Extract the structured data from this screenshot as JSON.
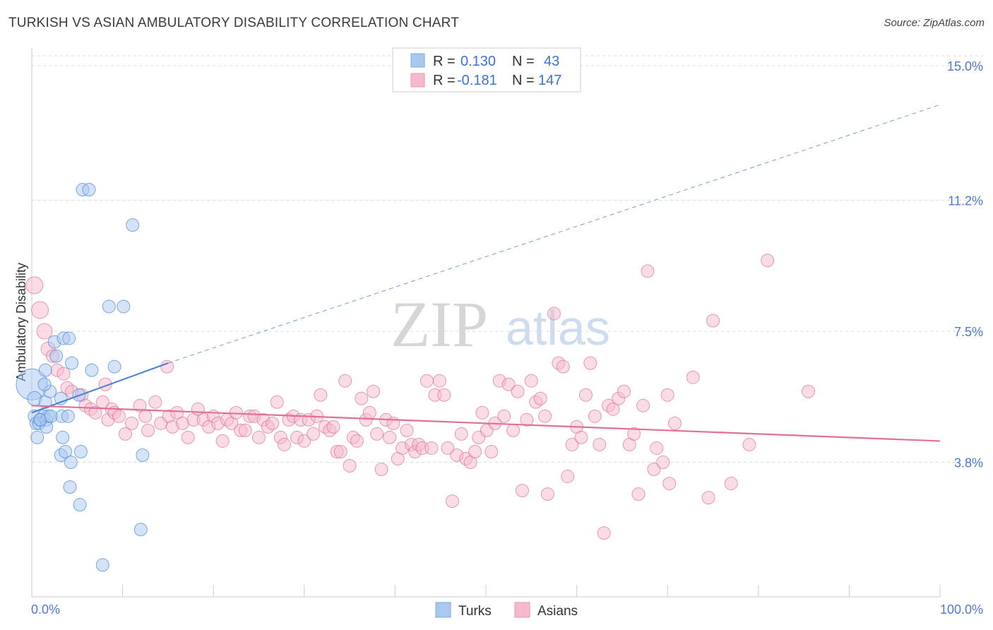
{
  "title": "TURKISH VS ASIAN AMBULATORY DISABILITY CORRELATION CHART",
  "source": "Source: ZipAtlas.com",
  "watermark": {
    "zip": "ZIP",
    "atlas": "atlas"
  },
  "legend_top": {
    "rows": [
      {
        "r_label": "R =",
        "r_value": "0.130",
        "n_label": "N =",
        "n_value": "43",
        "color": "#a9c8f0"
      },
      {
        "r_label": "R =",
        "r_value": "-0.181",
        "n_label": "N =",
        "n_value": "147",
        "color": "#f6b9cc"
      }
    ]
  },
  "legend_bottom": {
    "items": [
      "Turks",
      "Asians"
    ]
  },
  "chart_data": {
    "type": "scatter",
    "title": "TURKISH VS ASIAN AMBULATORY DISABILITY CORRELATION CHART",
    "xlabel": "",
    "ylabel": "Ambulatory Disability",
    "xlim": [
      0,
      100
    ],
    "ylim": [
      0,
      15.5
    ],
    "x_ticks": [
      "0.0%",
      "100.0%"
    ],
    "y_ticks": [
      {
        "value": 3.8,
        "label": "3.8%"
      },
      {
        "value": 7.5,
        "label": "7.5%"
      },
      {
        "value": 11.2,
        "label": "11.2%"
      },
      {
        "value": 15.0,
        "label": "15.0%"
      }
    ],
    "series": [
      {
        "name": "Turks",
        "color": "#4a86d4",
        "fill": "#a9c8f0",
        "trend": {
          "x": [
            0,
            15
          ],
          "y": [
            5.2,
            6.6
          ],
          "dashed_to": [
            100,
            13.9
          ]
        },
        "points": [
          [
            0,
            6.0,
            22
          ],
          [
            0.3,
            5.6,
            10
          ],
          [
            0.3,
            5.1,
            9
          ],
          [
            0.5,
            4.9,
            9
          ],
          [
            0.6,
            4.5,
            9
          ],
          [
            0.8,
            4.9,
            9
          ],
          [
            1.0,
            5.0,
            9
          ],
          [
            1.3,
            5.1,
            9
          ],
          [
            1.5,
            5.5,
            9
          ],
          [
            1.6,
            5.0,
            9
          ],
          [
            1.6,
            4.8,
            9
          ],
          [
            1.8,
            5.1,
            9
          ],
          [
            2.0,
            5.8,
            9
          ],
          [
            1.5,
            6.4,
            9
          ],
          [
            1.4,
            6.0,
            9
          ],
          [
            2.5,
            7.2,
            9
          ],
          [
            2.7,
            6.8,
            9
          ],
          [
            3.2,
            5.6,
            9
          ],
          [
            3.3,
            5.1,
            9
          ],
          [
            3.4,
            4.5,
            9
          ],
          [
            3.2,
            4.0,
            9
          ],
          [
            3.7,
            4.1,
            9
          ],
          [
            3.5,
            7.3,
            9
          ],
          [
            4.1,
            7.3,
            9
          ],
          [
            4.0,
            5.1,
            9
          ],
          [
            4.3,
            3.8,
            9
          ],
          [
            4.4,
            6.6,
            9
          ],
          [
            4.2,
            3.1,
            9
          ],
          [
            5.2,
            5.7,
            9
          ],
          [
            5.4,
            4.1,
            9
          ],
          [
            5.3,
            2.6,
            9
          ],
          [
            5.6,
            11.5,
            9
          ],
          [
            6.3,
            11.5,
            9
          ],
          [
            6.6,
            6.4,
            9
          ],
          [
            7.8,
            0.9,
            9
          ],
          [
            8.5,
            8.2,
            9
          ],
          [
            9.1,
            6.5,
            9
          ],
          [
            10.1,
            8.2,
            9
          ],
          [
            11.1,
            10.5,
            9
          ],
          [
            12.0,
            1.9,
            9
          ],
          [
            12.2,
            4.0,
            9
          ],
          [
            0.9,
            5.0,
            9
          ],
          [
            2.1,
            5.1,
            9
          ]
        ]
      },
      {
        "name": "Asians",
        "color": "#e0709a",
        "fill": "#f6b9cc",
        "trend": {
          "x": [
            0,
            100
          ],
          "y": [
            5.4,
            4.4
          ]
        },
        "points": [
          [
            0.3,
            8.8,
            12
          ],
          [
            0.9,
            8.1,
            12
          ],
          [
            1.4,
            7.5,
            11
          ],
          [
            1.8,
            7.0,
            10
          ],
          [
            2.3,
            6.8,
            9
          ],
          [
            2.8,
            6.4,
            9
          ],
          [
            3.5,
            6.3,
            9
          ],
          [
            3.9,
            5.9,
            9
          ],
          [
            4.4,
            5.8,
            9
          ],
          [
            5.5,
            5.7,
            9
          ],
          [
            5.9,
            5.4,
            9
          ],
          [
            6.5,
            5.3,
            9
          ],
          [
            7.0,
            5.2,
            9
          ],
          [
            7.8,
            5.5,
            9
          ],
          [
            8.1,
            6.0,
            9
          ],
          [
            8.4,
            5.0,
            9
          ],
          [
            8.8,
            5.3,
            9
          ],
          [
            9.1,
            5.2,
            9
          ],
          [
            9.6,
            5.1,
            9
          ],
          [
            10.3,
            4.6,
            9
          ],
          [
            11.0,
            4.9,
            9
          ],
          [
            11.9,
            5.4,
            9
          ],
          [
            12.5,
            5.1,
            9
          ],
          [
            12.8,
            4.7,
            9
          ],
          [
            13.6,
            5.5,
            9
          ],
          [
            14.2,
            4.9,
            9
          ],
          [
            14.9,
            6.5,
            9
          ],
          [
            15.1,
            5.1,
            9
          ],
          [
            15.5,
            4.8,
            9
          ],
          [
            16.0,
            5.2,
            9
          ],
          [
            16.6,
            4.9,
            9
          ],
          [
            17.2,
            4.5,
            9
          ],
          [
            17.8,
            5.0,
            9
          ],
          [
            18.3,
            5.3,
            9
          ],
          [
            18.9,
            5.0,
            9
          ],
          [
            19.5,
            4.8,
            9
          ],
          [
            20.0,
            5.1,
            9
          ],
          [
            20.5,
            4.9,
            9
          ],
          [
            21.0,
            4.4,
            9
          ],
          [
            21.5,
            5.0,
            9
          ],
          [
            22.0,
            4.9,
            9
          ],
          [
            22.5,
            5.2,
            9
          ],
          [
            23.0,
            4.7,
            9
          ],
          [
            23.5,
            4.7,
            9
          ],
          [
            24.0,
            5.1,
            9
          ],
          [
            24.5,
            5.1,
            9
          ],
          [
            25.0,
            4.5,
            9
          ],
          [
            25.5,
            5.0,
            9
          ],
          [
            26.0,
            4.8,
            9
          ],
          [
            26.5,
            4.9,
            9
          ],
          [
            27.0,
            5.5,
            9
          ],
          [
            27.4,
            4.5,
            9
          ],
          [
            27.8,
            4.3,
            9
          ],
          [
            28.3,
            5.0,
            9
          ],
          [
            28.8,
            5.1,
            9
          ],
          [
            29.2,
            4.5,
            9
          ],
          [
            29.6,
            5.0,
            9
          ],
          [
            30.0,
            4.4,
            9
          ],
          [
            30.5,
            5.0,
            9
          ],
          [
            31.0,
            4.6,
            9
          ],
          [
            31.4,
            5.1,
            9
          ],
          [
            31.8,
            5.7,
            9
          ],
          [
            32.3,
            4.8,
            9
          ],
          [
            32.8,
            4.7,
            9
          ],
          [
            33.2,
            4.8,
            9
          ],
          [
            33.6,
            4.1,
            9
          ],
          [
            34.0,
            4.1,
            9
          ],
          [
            34.5,
            6.1,
            9
          ],
          [
            35.0,
            3.7,
            9
          ],
          [
            35.4,
            4.5,
            9
          ],
          [
            35.8,
            4.4,
            9
          ],
          [
            36.3,
            5.6,
            9
          ],
          [
            36.8,
            5.0,
            9
          ],
          [
            37.2,
            5.2,
            9
          ],
          [
            37.6,
            5.8,
            9
          ],
          [
            38.0,
            4.6,
            9
          ],
          [
            38.5,
            3.6,
            9
          ],
          [
            39.0,
            5.0,
            9
          ],
          [
            39.4,
            4.5,
            9
          ],
          [
            39.8,
            4.9,
            9
          ],
          [
            40.3,
            3.9,
            9
          ],
          [
            40.8,
            4.2,
            9
          ],
          [
            41.3,
            4.7,
            9
          ],
          [
            41.8,
            4.3,
            9
          ],
          [
            42.2,
            4.1,
            9
          ],
          [
            42.6,
            4.3,
            9
          ],
          [
            43.0,
            4.2,
            9
          ],
          [
            43.5,
            6.1,
            9
          ],
          [
            44.0,
            4.2,
            9
          ],
          [
            44.4,
            5.7,
            9
          ],
          [
            44.9,
            6.1,
            9
          ],
          [
            45.4,
            5.7,
            9
          ],
          [
            45.8,
            4.2,
            9
          ],
          [
            46.3,
            2.7,
            9
          ],
          [
            46.8,
            4.0,
            9
          ],
          [
            47.3,
            4.6,
            9
          ],
          [
            47.8,
            3.9,
            9
          ],
          [
            48.3,
            3.8,
            9
          ],
          [
            48.8,
            4.1,
            9
          ],
          [
            49.2,
            4.5,
            9
          ],
          [
            49.6,
            5.2,
            9
          ],
          [
            50.1,
            4.7,
            9
          ],
          [
            50.6,
            4.1,
            9
          ],
          [
            51.0,
            4.9,
            9
          ],
          [
            51.5,
            6.1,
            9
          ],
          [
            52.0,
            5.1,
            9
          ],
          [
            52.5,
            6.0,
            9
          ],
          [
            53.0,
            4.7,
            9
          ],
          [
            53.5,
            5.8,
            9
          ],
          [
            54.0,
            3.0,
            9
          ],
          [
            54.5,
            5.0,
            9
          ],
          [
            55.0,
            6.1,
            9
          ],
          [
            55.5,
            5.5,
            9
          ],
          [
            56.0,
            5.6,
            9
          ],
          [
            56.5,
            5.1,
            9
          ],
          [
            56.8,
            2.9,
            9
          ],
          [
            57.5,
            8.0,
            9
          ],
          [
            58.0,
            6.6,
            9
          ],
          [
            58.5,
            6.5,
            9
          ],
          [
            59.0,
            3.4,
            9
          ],
          [
            59.5,
            4.3,
            9
          ],
          [
            60.0,
            4.8,
            9
          ],
          [
            60.5,
            4.5,
            9
          ],
          [
            61.0,
            5.7,
            9
          ],
          [
            61.5,
            6.6,
            9
          ],
          [
            62.0,
            5.1,
            9
          ],
          [
            62.5,
            4.3,
            9
          ],
          [
            63.0,
            1.8,
            9
          ],
          [
            63.5,
            5.4,
            9
          ],
          [
            64.0,
            5.3,
            9
          ],
          [
            64.6,
            5.6,
            9
          ],
          [
            65.2,
            5.8,
            9
          ],
          [
            65.8,
            4.3,
            9
          ],
          [
            66.3,
            4.6,
            9
          ],
          [
            66.8,
            2.9,
            9
          ],
          [
            67.3,
            5.4,
            9
          ],
          [
            67.8,
            9.2,
            9
          ],
          [
            68.5,
            3.6,
            9
          ],
          [
            68.8,
            4.2,
            9
          ],
          [
            69.5,
            3.8,
            9
          ],
          [
            70.0,
            5.7,
            9
          ],
          [
            70.2,
            3.2,
            9
          ],
          [
            70.8,
            4.9,
            9
          ],
          [
            72.8,
            6.2,
            9
          ],
          [
            74.5,
            2.8,
            9
          ],
          [
            75.0,
            7.8,
            9
          ],
          [
            77.0,
            3.2,
            9
          ],
          [
            79.0,
            4.3,
            9
          ],
          [
            81.0,
            9.5,
            9
          ],
          [
            85.5,
            5.8,
            9
          ]
        ]
      }
    ]
  }
}
